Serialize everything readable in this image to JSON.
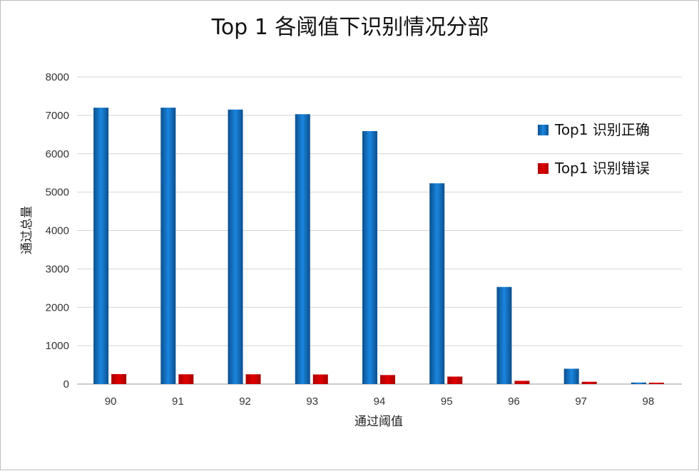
{
  "chart_data": {
    "type": "bar",
    "title": "Top 1 各阈值下识别情况分部",
    "xlabel": "通过阈值",
    "ylabel": "通过总量",
    "categories": [
      "90",
      "91",
      "92",
      "93",
      "94",
      "95",
      "96",
      "97",
      "98"
    ],
    "ylim": [
      0,
      8000
    ],
    "yticks": [
      "0",
      "1000",
      "2000",
      "3000",
      "4000",
      "5000",
      "6000",
      "7000",
      "8000"
    ],
    "grid": true,
    "legend_position": "right",
    "series": [
      {
        "name": "Top1 识别正确",
        "color": "#1a73c7",
        "values": [
          7200,
          7200,
          7150,
          7030,
          6590,
          5230,
          2530,
          400,
          40
        ]
      },
      {
        "name": "Top1 识别错误",
        "color": "#d00000",
        "values": [
          260,
          255,
          255,
          250,
          235,
          195,
          85,
          60,
          35
        ]
      }
    ]
  }
}
